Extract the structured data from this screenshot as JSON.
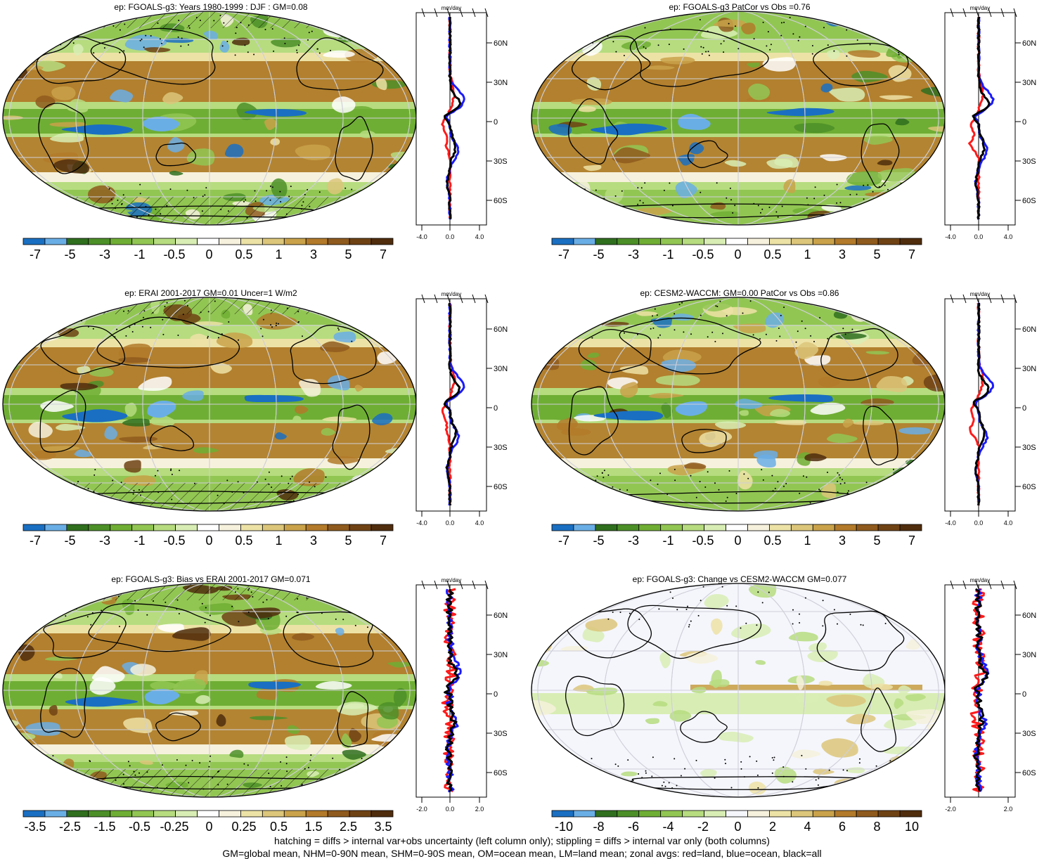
{
  "colors": {
    "map_palette": [
      "#1a6fc2",
      "#6aaee6",
      "#2f6f1e",
      "#4c8f28",
      "#6fae34",
      "#92c653",
      "#b6dc7f",
      "#d8edb4",
      "#ffffff",
      "#f6f1dc",
      "#ede2a6",
      "#dcc67a",
      "#c9a24a",
      "#b27a2a",
      "#8f5a1d",
      "#6f4214",
      "#4f2d0d"
    ],
    "change_palette": [
      "#1a6fc2",
      "#6aaee6",
      "#2f6f1e",
      "#4c8f28",
      "#6fae34",
      "#92c653",
      "#b6dc7f",
      "#d8edb4",
      "#f5f6fc",
      "#f6f1dc",
      "#ede2a6",
      "#dcc67a",
      "#c9a24a",
      "#b27a2a",
      "#8f5a1d",
      "#6f4214",
      "#4f2d0d"
    ],
    "land_line": "#ff1a1a",
    "ocean_line": "#1a1aff",
    "all_line": "#000000"
  },
  "panels": [
    {
      "title": "ep: FGOALS-g3: Years 1980-1999 : DJF : GM=0.08",
      "colorbar_labels": [
        "-7",
        "-5",
        "-3",
        "-1",
        "-0.5",
        "0",
        "0.5",
        "1",
        "3",
        "5",
        "7"
      ],
      "zonal_unit": "mm/day",
      "zonal_xticks": [
        "-4.0",
        "0.0",
        "4.0"
      ],
      "lat_labels": [
        "60N",
        "30N",
        "0",
        "30S",
        "60S"
      ],
      "hatched": true
    },
    {
      "title": "ep: FGOALS-g3 PatCor vs Obs =0.76",
      "colorbar_labels": [
        "-7",
        "-5",
        "-3",
        "-1",
        "-0.5",
        "0",
        "0.5",
        "1",
        "3",
        "5",
        "7"
      ],
      "zonal_unit": "mm/day",
      "zonal_xticks": [
        "-4.0",
        "0.0",
        "4.0"
      ],
      "lat_labels": [
        "60N",
        "30N",
        "0",
        "30S",
        "60S"
      ],
      "hatched": false
    },
    {
      "title": "ep: ERAI 2001-2017 GM=0.01 Uncer=1 W/m2",
      "colorbar_labels": [
        "-7",
        "-5",
        "-3",
        "-1",
        "-0.5",
        "0",
        "0.5",
        "1",
        "3",
        "5",
        "7"
      ],
      "zonal_unit": "mm/day",
      "zonal_xticks": [
        "-4.0",
        "0.0",
        "4.0"
      ],
      "lat_labels": [
        "60N",
        "30N",
        "0",
        "30S",
        "60S"
      ],
      "hatched": true
    },
    {
      "title": "ep: CESM2-WACCM: GM=0.00 PatCor vs Obs =0.86",
      "colorbar_labels": [
        "-7",
        "-5",
        "-3",
        "-1",
        "-0.5",
        "0",
        "0.5",
        "1",
        "3",
        "5",
        "7"
      ],
      "zonal_unit": "mm/day",
      "zonal_xticks": [
        "-4.0",
        "0.0",
        "4.0"
      ],
      "lat_labels": [
        "60N",
        "30N",
        "0",
        "30S",
        "60S"
      ],
      "hatched": false
    },
    {
      "title": "ep: FGOALS-g3: Bias vs ERAI 2001-2017 GM=0.071",
      "colorbar_labels": [
        "-3.5",
        "-2.5",
        "-1.5",
        "-0.5",
        "-0.25",
        "0",
        "0.25",
        "0.5",
        "1.5",
        "2.5",
        "3.5"
      ],
      "zonal_unit": "mm/day",
      "zonal_xticks": [
        "-2.0",
        "0.0",
        "2.0"
      ],
      "lat_labels": [
        "60N",
        "30N",
        "0",
        "30S",
        "60S"
      ],
      "hatched": true
    },
    {
      "title": "ep: FGOALS-g3: Change vs CESM2-WACCM GM=0.077",
      "colorbar_labels": [
        "-10",
        "-8",
        "-6",
        "-4",
        "-2",
        "0",
        "2",
        "4",
        "6",
        "8",
        "10"
      ],
      "zonal_unit": "mm/day",
      "zonal_xticks": [
        "-2.0",
        "2.0"
      ],
      "lat_labels": [
        "60N",
        "30N",
        "0",
        "30S",
        "60S"
      ],
      "hatched": false
    }
  ],
  "footer": {
    "line1": "hatching = diffs > internal var+obs uncertainty (left column only); stippling = diffs > internal var only (both columns)",
    "line2": "GM=global mean, NHM=0-90N mean, SHM=0-90S mean, OM=ocean mean, LM=land mean; zonal avgs: red=land, blue=ocean, black=all"
  }
}
